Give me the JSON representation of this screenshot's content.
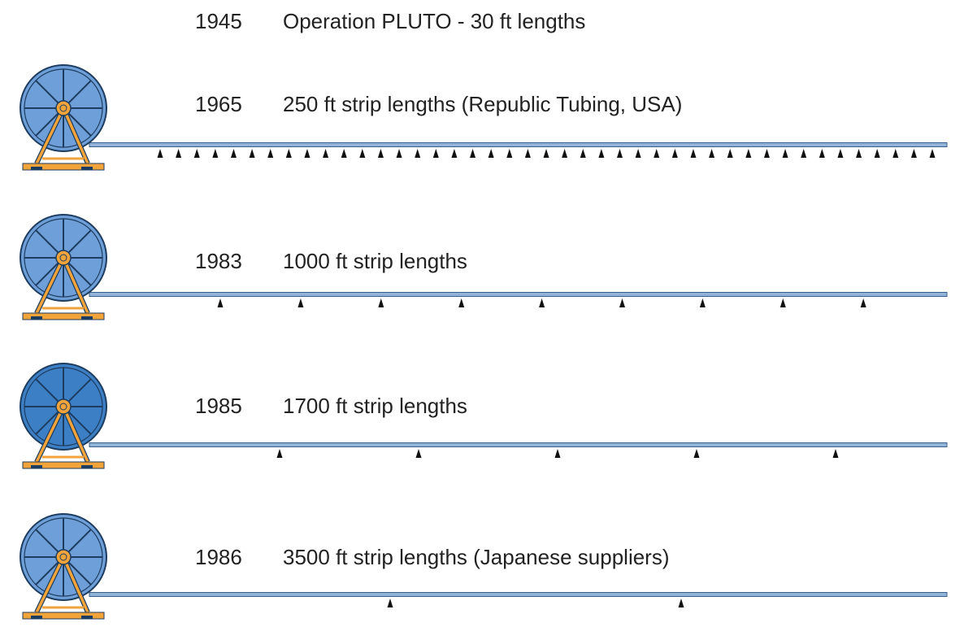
{
  "rows": [
    {
      "year": "1945",
      "label": "Operation PLUTO - 30 ft lengths"
    },
    {
      "year": "1965",
      "label": "250 ft strip lengths (Republic Tubing, USA)"
    },
    {
      "year": "1983",
      "label": "1000 ft strip lengths"
    },
    {
      "year": "1985",
      "label": "1700 ft strip lengths"
    },
    {
      "year": "1986",
      "label": "3500 ft strip lengths (Japanese suppliers)"
    }
  ]
}
